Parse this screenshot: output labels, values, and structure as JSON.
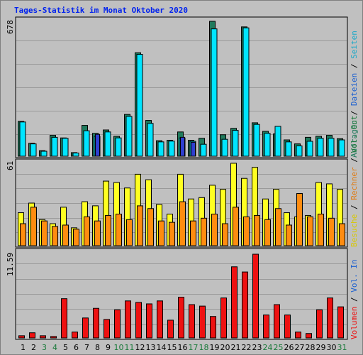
{
  "title": "Tages-Statistik im Monat Oktober 2020",
  "colors": {
    "anfragen": "#1f7a5c",
    "dateien": "#00e5ff",
    "seiten": "#2f3fd0",
    "besuche": "#ffff22",
    "rechner": "#ff8c10",
    "volumen": "#ee1111",
    "weekday": "#000000",
    "weekend": "#1a7a3a",
    "panel": "#c0c0c0",
    "grid": "#9a9a9a"
  },
  "legend": {
    "top": [
      {
        "text": "Anfragen",
        "color": "#1f7a5c"
      },
      {
        "text": " / ",
        "color": "#000000"
      },
      {
        "text": "Dateien",
        "color": "#1a5fd0"
      },
      {
        "text": " / ",
        "color": "#000000"
      },
      {
        "text": "Seiten",
        "color": "#1aa8c8"
      }
    ],
    "mid": [
      {
        "text": "Besuche",
        "color": "#d8c800"
      },
      {
        "text": " / ",
        "color": "#000000"
      },
      {
        "text": "Rechner",
        "color": "#e07a10"
      },
      {
        "text": " / ",
        "color": "#000000"
      },
      {
        "text": "Vol. Out",
        "color": "#1a7a3a"
      }
    ],
    "bot": [
      {
        "text": "Volumen",
        "color": "#ee1111"
      },
      {
        "text": " / ",
        "color": "#000000"
      },
      {
        "text": "Vol. In",
        "color": "#1a5fd0"
      }
    ]
  },
  "chart_data": [
    {
      "type": "bar",
      "panel": "top",
      "ymax_label": "678",
      "ylim": [
        0,
        678
      ],
      "categories": [
        "1",
        "2",
        "3",
        "4",
        "5",
        "6",
        "7",
        "8",
        "9",
        "10",
        "11",
        "12",
        "13",
        "14",
        "15",
        "16",
        "17",
        "18",
        "19",
        "20",
        "21",
        "22",
        "23",
        "24",
        "25",
        "26",
        "27",
        "28",
        "29",
        "30",
        "31"
      ],
      "weekend_days": [
        "3",
        "4",
        "10",
        "11",
        "17",
        "18",
        "24",
        "25",
        "31"
      ],
      "series": [
        {
          "name": "Anfragen",
          "values": [
            175,
            65,
            28,
            105,
            92,
            18,
            155,
            115,
            132,
            100,
            210,
            520,
            180,
            78,
            80,
            122,
            80,
            90,
            678,
            108,
            140,
            650,
            168,
            125,
            112,
            82,
            62,
            95,
            100,
            105,
            88
          ]
        },
        {
          "name": "Dateien",
          "values": [
            172,
            62,
            25,
            95,
            90,
            16,
            128,
            100,
            122,
            92,
            200,
            512,
            165,
            72,
            76,
            92,
            75,
            60,
            640,
            85,
            130,
            645,
            160,
            115,
            150,
            72,
            52,
            75,
            90,
            90,
            82
          ]
        },
        {
          "name": "Seiten",
          "values": [
            0,
            0,
            0,
            0,
            0,
            0,
            0,
            110,
            0,
            0,
            0,
            0,
            0,
            0,
            0,
            95,
            70,
            0,
            0,
            0,
            0,
            0,
            0,
            0,
            0,
            0,
            0,
            0,
            0,
            0,
            0
          ]
        }
      ]
    },
    {
      "type": "bar",
      "panel": "middle",
      "ymax_label": "61",
      "ylim": [
        0,
        61
      ],
      "categories": [
        "1",
        "2",
        "3",
        "4",
        "5",
        "6",
        "7",
        "8",
        "9",
        "10",
        "11",
        "12",
        "13",
        "14",
        "15",
        "16",
        "17",
        "18",
        "19",
        "20",
        "21",
        "22",
        "23",
        "24",
        "25",
        "26",
        "27",
        "28",
        "29",
        "30",
        "31"
      ],
      "series": [
        {
          "name": "Besuche",
          "values": [
            24,
            31,
            19,
            16,
            28,
            13,
            32,
            29,
            47,
            46,
            42,
            52,
            48,
            30,
            23,
            52,
            34,
            35,
            44,
            41,
            60,
            49,
            57,
            34,
            41,
            24,
            21,
            22,
            46,
            45,
            41
          ]
        },
        {
          "name": "Rechner",
          "values": [
            16,
            28,
            18,
            14,
            15,
            12,
            21,
            18,
            22,
            23,
            19,
            29,
            27,
            18,
            17,
            32,
            18,
            20,
            23,
            16,
            28,
            21,
            22,
            19,
            27,
            15,
            38,
            21,
            23,
            20,
            16
          ]
        }
      ]
    },
    {
      "type": "bar",
      "panel": "bottom",
      "ymax_label": "11.59",
      "ylim": [
        0,
        11.59
      ],
      "categories": [
        "1",
        "2",
        "3",
        "4",
        "5",
        "6",
        "7",
        "8",
        "9",
        "10",
        "11",
        "12",
        "13",
        "14",
        "15",
        "16",
        "17",
        "18",
        "19",
        "20",
        "21",
        "22",
        "23",
        "24",
        "25",
        "26",
        "27",
        "28",
        "29",
        "30",
        "31"
      ],
      "series": [
        {
          "name": "Volumen",
          "values": [
            0.3,
            0.7,
            0.3,
            0.2,
            5.3,
            0.8,
            2.7,
            4.0,
            2.5,
            3.8,
            5.0,
            4.8,
            4.6,
            5.0,
            2.4,
            5.5,
            4.5,
            4.3,
            2.9,
            5.4,
            9.6,
            8.9,
            11.3,
            3.1,
            4.5,
            3.1,
            0.8,
            0.6,
            3.8,
            5.4,
            4.2
          ]
        }
      ]
    }
  ]
}
